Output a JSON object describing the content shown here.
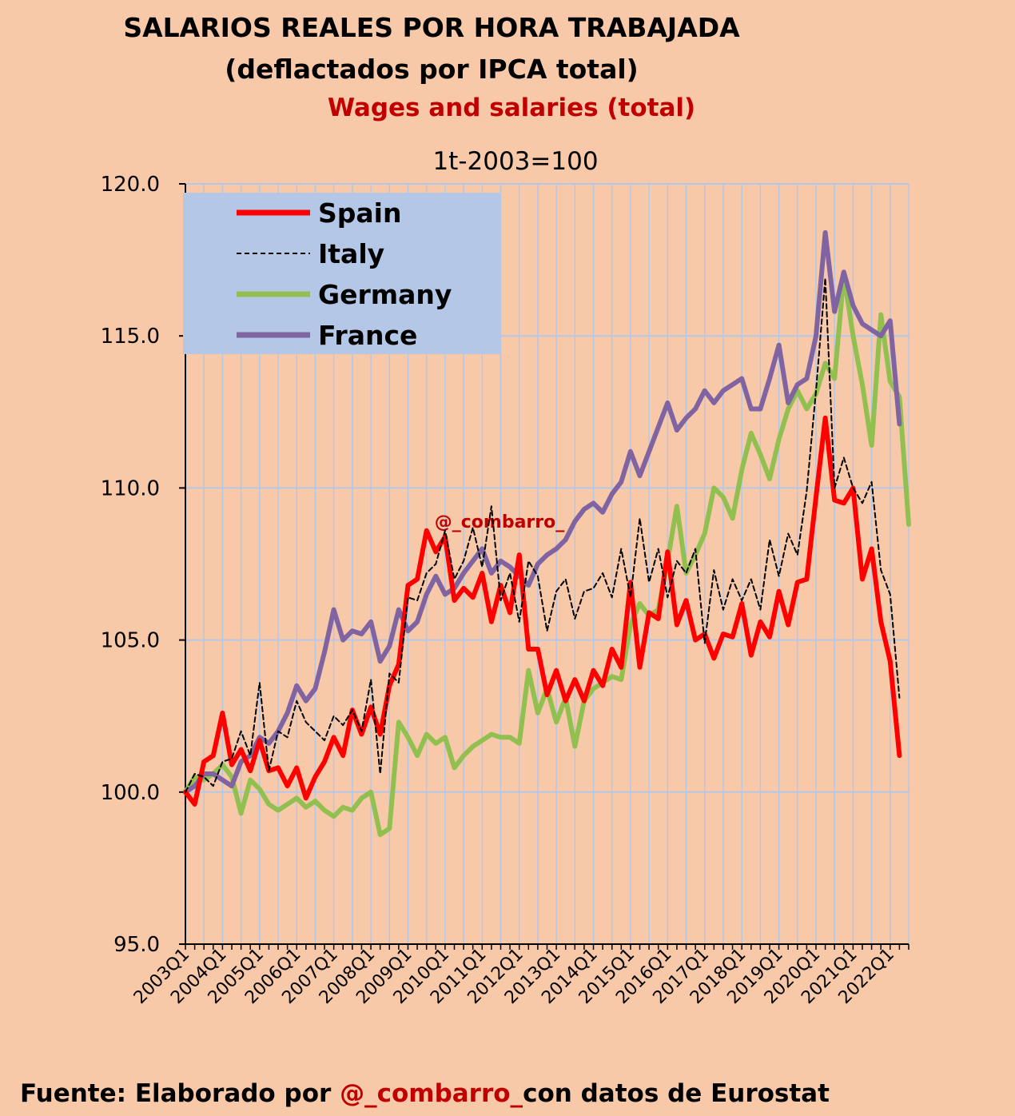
{
  "chart_data": {
    "type": "line",
    "title": [
      "SALARIOS REALES POR HORA TRABAJADA",
      "(deflactados por IPCA total)"
    ],
    "subtitle": "Wages and salaries (total)",
    "base_label": "1t-2003=100",
    "ylim": [
      95,
      120
    ],
    "yticks": [
      "95.0",
      "100.0",
      "105.0",
      "110.0",
      "115.0",
      "120.0"
    ],
    "ytick_values": [
      95,
      100,
      105,
      110,
      115,
      120
    ],
    "x_quarters_count": 79,
    "xtick_labels": [
      "2003Q1",
      "2004Q1",
      "2005Q1",
      "2006Q1",
      "2007Q1",
      "2008Q1",
      "2009Q1",
      "2010Q1",
      "2011Q1",
      "2012Q1",
      "2013Q1",
      "2014Q1",
      "2015Q1",
      "2016Q1",
      "2017Q1",
      "2018Q1",
      "2019Q1",
      "2020Q1",
      "2021Q1",
      "2022Q1"
    ],
    "grid": true,
    "legend_position": "top-left",
    "watermark": "@_combarro_",
    "series": [
      {
        "name": "Spain",
        "color": "#ff0000",
        "style": "solid",
        "values": [
          100.0,
          99.6,
          101.0,
          101.2,
          102.6,
          100.9,
          101.4,
          100.7,
          101.7,
          100.7,
          100.8,
          100.2,
          100.8,
          99.8,
          100.5,
          101.0,
          101.8,
          101.2,
          102.7,
          101.9,
          102.8,
          101.9,
          103.5,
          104.2,
          106.8,
          107.0,
          108.6,
          107.9,
          108.4,
          106.3,
          106.7,
          106.4,
          107.2,
          105.6,
          106.8,
          105.9,
          107.8,
          104.7,
          104.7,
          103.2,
          104.0,
          103.0,
          103.7,
          103.0,
          104.0,
          103.5,
          104.7,
          104.1,
          106.9,
          104.1,
          105.9,
          105.7,
          107.9,
          105.5,
          106.3,
          105.0,
          105.2,
          104.4,
          105.2,
          105.1,
          106.2,
          104.5,
          105.6,
          105.1,
          106.6,
          105.5,
          106.9,
          107.0,
          109.7,
          112.3,
          109.6,
          109.5,
          110.0,
          107.0,
          108.0,
          105.6,
          104.3,
          101.2
        ]
      },
      {
        "name": "Italy",
        "color": "#000000",
        "style": "dashed",
        "values": [
          100.0,
          100.6,
          100.5,
          100.2,
          101.0,
          101.1,
          102.0,
          101.2,
          103.6,
          100.7,
          102.0,
          101.8,
          103.0,
          102.3,
          102.0,
          101.7,
          102.5,
          102.2,
          102.7,
          102.0,
          103.7,
          100.6,
          103.9,
          103.6,
          106.4,
          106.3,
          107.2,
          107.5,
          108.6,
          107.0,
          107.6,
          108.7,
          107.4,
          109.4,
          106.3,
          107.2,
          105.6,
          107.6,
          107.1,
          105.3,
          106.6,
          107.0,
          105.7,
          106.6,
          106.7,
          107.2,
          106.4,
          108.0,
          106.4,
          109.0,
          106.9,
          108.0,
          106.4,
          107.6,
          107.2,
          108.0,
          104.9,
          107.3,
          106.0,
          107.0,
          106.3,
          107.0,
          106.0,
          108.3,
          107.1,
          108.5,
          107.8,
          109.9,
          113.2,
          116.9,
          110.0,
          111.0,
          110.0,
          109.5,
          110.2,
          107.3,
          106.5,
          103.1
        ]
      },
      {
        "name": "Germany",
        "color": "#92c050",
        "style": "solid",
        "values": [
          100.0,
          100.5,
          100.4,
          100.6,
          100.9,
          100.5,
          99.3,
          100.4,
          100.1,
          99.6,
          99.4,
          99.6,
          99.8,
          99.5,
          99.7,
          99.4,
          99.2,
          99.5,
          99.4,
          99.8,
          100.0,
          98.6,
          98.8,
          102.3,
          101.8,
          101.2,
          101.9,
          101.6,
          101.8,
          100.8,
          101.2,
          101.5,
          101.7,
          101.9,
          101.8,
          101.8,
          101.6,
          104.0,
          102.6,
          103.4,
          102.3,
          103.1,
          101.5,
          103.0,
          103.4,
          103.6,
          103.8,
          103.7,
          105.5,
          106.2,
          105.8,
          106.0,
          107.6,
          109.4,
          107.2,
          107.8,
          108.5,
          110.0,
          109.7,
          109.0,
          110.6,
          111.8,
          111.1,
          110.3,
          111.6,
          112.6,
          113.2,
          112.6,
          113.1,
          114.1,
          113.6,
          117.0,
          115.0,
          113.4,
          111.4,
          115.7,
          113.5,
          113.0,
          108.8
        ]
      },
      {
        "name": "France",
        "color": "#8064a2",
        "style": "solid",
        "values": [
          100.0,
          100.2,
          100.6,
          100.6,
          100.4,
          100.2,
          101.0,
          101.2,
          101.8,
          101.6,
          102.0,
          102.6,
          103.5,
          103.0,
          103.4,
          104.6,
          106.0,
          105.0,
          105.3,
          105.2,
          105.6,
          104.3,
          104.8,
          106.0,
          105.3,
          105.6,
          106.5,
          107.1,
          106.5,
          106.7,
          107.2,
          107.6,
          108.0,
          107.2,
          107.6,
          107.4,
          107.1,
          106.8,
          107.5,
          107.8,
          108.0,
          108.3,
          108.9,
          109.3,
          109.5,
          109.2,
          109.8,
          110.2,
          111.2,
          110.4,
          111.2,
          112.0,
          112.8,
          111.9,
          112.3,
          112.6,
          113.2,
          112.8,
          113.2,
          113.4,
          113.6,
          112.6,
          112.6,
          113.6,
          114.7,
          112.8,
          113.4,
          113.6,
          115.0,
          118.4,
          115.8,
          117.1,
          116.0,
          115.4,
          115.2,
          115.0,
          115.5,
          112.1
        ]
      }
    ]
  },
  "source": {
    "prefix": "Fuente: Elaborado por ",
    "handle": "@_combarro_",
    "suffix": "con  datos de Eurostat"
  }
}
